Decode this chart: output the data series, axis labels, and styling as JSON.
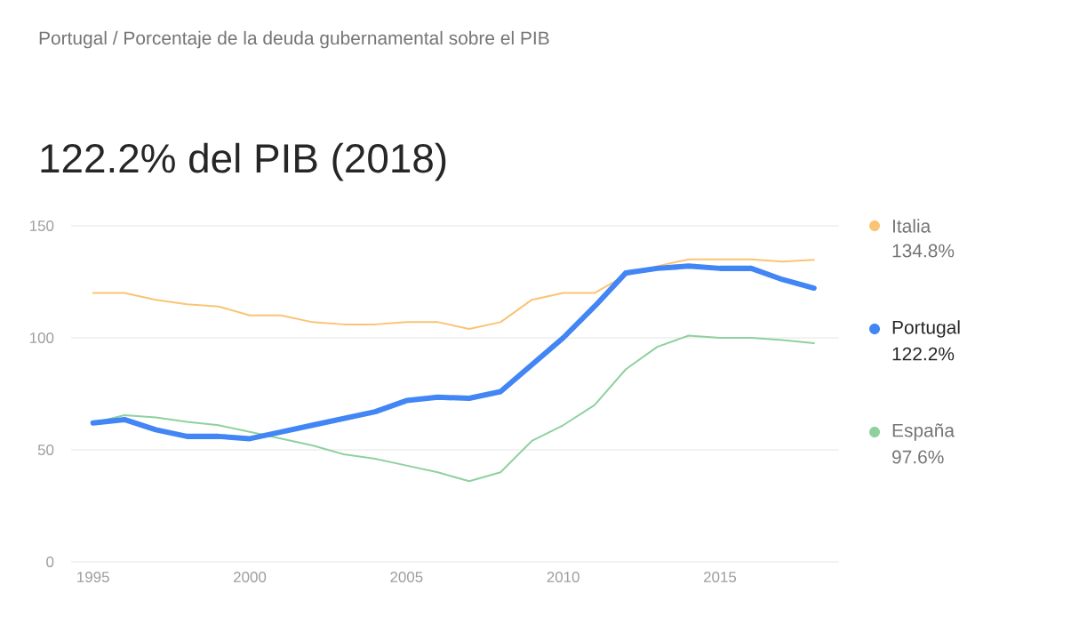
{
  "chart_data": {
    "type": "line",
    "title": "122.2% del PIB (2018)",
    "annotations": [
      "Portugal / Porcentaje de la deuda gubernamental sobre el PIB",
      "134.8%",
      "122.2%",
      "97.6%"
    ],
    "x": [
      1995,
      1996,
      1997,
      1998,
      1999,
      2000,
      2001,
      2002,
      2003,
      2004,
      2005,
      2006,
      2007,
      2008,
      2009,
      2010,
      2011,
      2012,
      2013,
      2014,
      2015,
      2016,
      2017,
      2018
    ],
    "series": [
      {
        "name": "Italia",
        "color": "#fbc374",
        "values": [
          120,
          120,
          117,
          115,
          114,
          110,
          110,
          107,
          106,
          106,
          107,
          107,
          104,
          107,
          117,
          120,
          120,
          128,
          132,
          135,
          135,
          135,
          134,
          134.8
        ]
      },
      {
        "name": "Portugal",
        "color": "#4285f4",
        "values": [
          62,
          63.5,
          59,
          56,
          56,
          55,
          58,
          61,
          64,
          67,
          72,
          73.5,
          73,
          76,
          88,
          100,
          114,
          129,
          131,
          132,
          131,
          131,
          126,
          122.2
        ]
      },
      {
        "name": "España",
        "color": "#8fd19e",
        "values": [
          62,
          65.5,
          64.5,
          62.5,
          61,
          58,
          55,
          52,
          48,
          46,
          43,
          40,
          36,
          40,
          54,
          61,
          70,
          86,
          96,
          101,
          100,
          100,
          99,
          97.6
        ]
      }
    ],
    "xlim": [
      1994.3,
      2018.8
    ],
    "ylim": [
      0,
      150
    ],
    "xticks": [
      1995,
      2000,
      2005,
      2010,
      2015
    ],
    "yticks": [
      0,
      50,
      100,
      150
    ],
    "grid": "y",
    "legend": "right",
    "line_style": "solid"
  }
}
